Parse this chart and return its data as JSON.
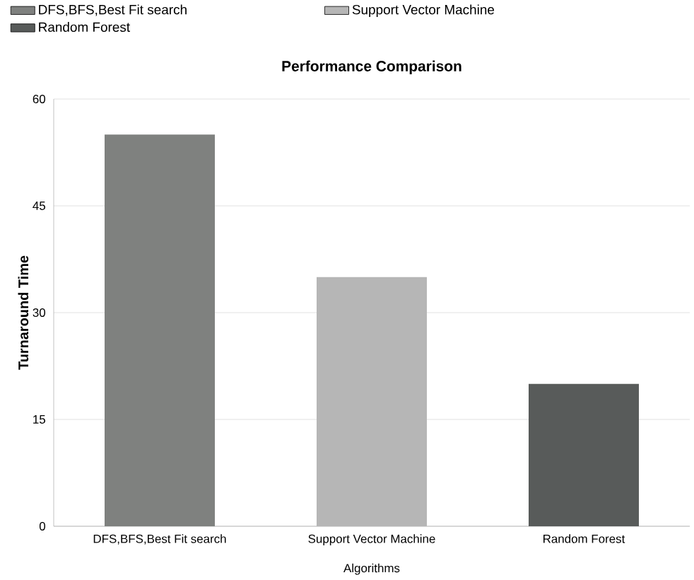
{
  "chart_data": {
    "type": "bar",
    "title": "Performance Comparison",
    "xlabel": "Algorithms",
    "ylabel": "Turnaround Time",
    "categories": [
      "DFS,BFS,Best Fit search",
      "Support Vector Machine",
      "Random Forest"
    ],
    "series": [
      {
        "name": "DFS,BFS,Best Fit search",
        "color": "#7f817f",
        "values": [
          55,
          null,
          null
        ]
      },
      {
        "name": "Support Vector Machine",
        "color": "#b6b6b6",
        "values": [
          null,
          35,
          null
        ]
      },
      {
        "name": "Random Forest",
        "color": "#585b5a",
        "values": [
          null,
          null,
          20
        ]
      }
    ],
    "ylim": [
      0,
      60
    ],
    "yticks": [
      0,
      15,
      30,
      45,
      60
    ],
    "grid": "y",
    "legend": "top left"
  }
}
